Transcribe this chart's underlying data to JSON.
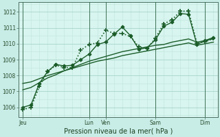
{
  "bg_color": "#c8ece6",
  "plot_bg": "#d8f5ef",
  "grid_major_color": "#a8d4cc",
  "grid_minor_color": "#bee4dc",
  "line_color": "#1a5c28",
  "title": "Pression niveau de la mer( hPa )",
  "ylabel_ticks": [
    1006,
    1007,
    1008,
    1009,
    1010,
    1011,
    1012
  ],
  "x_day_labels": [
    [
      "Jeu",
      0
    ],
    [
      "Lun",
      8
    ],
    [
      "Ven",
      10
    ],
    [
      "Sam",
      16
    ],
    [
      "Dim",
      22
    ]
  ],
  "day_line_x": [
    0,
    8,
    10,
    16,
    22
  ],
  "xlim": [
    -0.5,
    23.5
  ],
  "ylim": [
    1005.4,
    1012.6
  ],
  "series": [
    [
      1005.85,
      1006.0,
      1007.3,
      1008.25,
      1008.65,
      1008.5,
      1008.5,
      1009.6,
      1009.95,
      1010.05,
      1010.85,
      1010.65,
      1010.65,
      1010.45,
      1009.8,
      1009.7,
      1010.35,
      1011.25,
      1011.5,
      1012.05,
      1012.05,
      1010.05,
      1010.1,
      1010.35
    ],
    [
      1006.0,
      1006.15,
      1007.5,
      1008.25,
      1008.7,
      1008.6,
      1008.65,
      1009.0,
      1009.35,
      1009.95,
      1010.1,
      1010.6,
      1011.05,
      1010.5,
      1009.65,
      1009.75,
      1010.25,
      1011.1,
      1011.35,
      1011.9,
      1011.85,
      1009.95,
      1010.2,
      1010.4
    ],
    [
      1007.1,
      1007.25,
      1007.55,
      1007.85,
      1008.05,
      1008.3,
      1008.5,
      1008.7,
      1008.9,
      1009.05,
      1009.2,
      1009.35,
      1009.5,
      1009.6,
      1009.7,
      1009.8,
      1009.9,
      1009.95,
      1010.1,
      1010.2,
      1010.3,
      1010.1,
      1010.2,
      1010.3
    ],
    [
      1007.5,
      1007.6,
      1007.8,
      1008.0,
      1008.15,
      1008.3,
      1008.45,
      1008.6,
      1008.75,
      1008.9,
      1009.0,
      1009.1,
      1009.25,
      1009.35,
      1009.45,
      1009.55,
      1009.65,
      1009.75,
      1009.85,
      1009.95,
      1010.05,
      1009.9,
      1010.0,
      1010.1
    ]
  ],
  "series_styles": [
    {
      "linestyle": ":",
      "marker": "+",
      "markersize": 5,
      "linewidth": 1.2,
      "markeredgewidth": 1.2
    },
    {
      "linestyle": "-",
      "marker": "D",
      "markersize": 2.5,
      "linewidth": 1.0,
      "markeredgewidth": 0.8
    },
    {
      "linestyle": "-",
      "marker": null,
      "markersize": 0,
      "linewidth": 1.0,
      "markeredgewidth": 0.5
    },
    {
      "linestyle": "-",
      "marker": null,
      "markersize": 0,
      "linewidth": 1.0,
      "markeredgewidth": 0.5
    }
  ]
}
